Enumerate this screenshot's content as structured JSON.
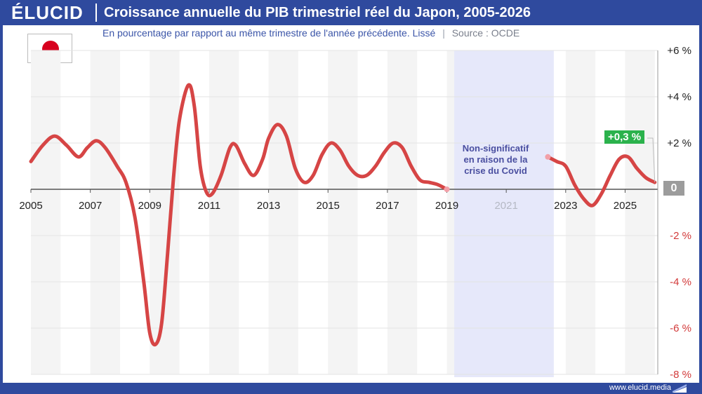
{
  "header": {
    "logo": "ÉLUCID",
    "title": "Croissance annuelle du PIB trimestriel réel du Japon, 2005-2026",
    "subtitle": "En pourcentage par rapport au même trimestre de l'année précédente. Lissé",
    "separator": "|",
    "source": "Source : OCDE"
  },
  "flag": {
    "icon": "japan-flag-icon",
    "disc_color": "#d7001e"
  },
  "footer": {
    "url": "www.elucid.media"
  },
  "colors": {
    "brand": "#2f4a9e",
    "line": "#d64545",
    "line_faded": "#f2a0a8",
    "covid_band": "#e6e8fa",
    "badge_green": "#2bb24c",
    "badge_gray": "#9c9c9c"
  },
  "chart_data": {
    "type": "line",
    "title": "Croissance annuelle du PIB trimestriel réel du Japon, 2005-2026",
    "xlabel": "",
    "ylabel": "",
    "xlim": [
      2005.0,
      2026.1
    ],
    "ylim": [
      -8,
      6
    ],
    "x_ticks": [
      "2005",
      "2007",
      "2009",
      "2011",
      "2013",
      "2015",
      "2017",
      "2019",
      "2021",
      "2023",
      "2025"
    ],
    "y_ticks": [
      "+6 %",
      "+4 %",
      "+2 %",
      "0",
      "-2 %",
      "-4 %",
      "-6 %",
      "-8 %"
    ],
    "grid": "horizontal",
    "alternating_year_bands": true,
    "series": [
      {
        "name": "",
        "values_segment_1": [
          [
            2005.0,
            1.2
          ],
          [
            2005.4,
            1.9
          ],
          [
            2005.8,
            2.3
          ],
          [
            2006.2,
            1.9
          ],
          [
            2006.6,
            1.4
          ],
          [
            2006.9,
            1.8
          ],
          [
            2007.2,
            2.1
          ],
          [
            2007.5,
            1.8
          ],
          [
            2007.9,
            1.0
          ],
          [
            2008.2,
            0.3
          ],
          [
            2008.5,
            -1.2
          ],
          [
            2008.8,
            -4.0
          ],
          [
            2009.0,
            -6.2
          ],
          [
            2009.2,
            -6.7
          ],
          [
            2009.4,
            -5.8
          ],
          [
            2009.6,
            -2.8
          ],
          [
            2009.8,
            0.5
          ],
          [
            2010.0,
            3.0
          ],
          [
            2010.3,
            4.5
          ],
          [
            2010.5,
            3.6
          ],
          [
            2010.7,
            1.0
          ],
          [
            2010.9,
            -0.1
          ],
          [
            2011.1,
            -0.2
          ],
          [
            2011.4,
            0.6
          ],
          [
            2011.7,
            1.8
          ],
          [
            2011.9,
            1.9
          ],
          [
            2012.2,
            1.1
          ],
          [
            2012.5,
            0.6
          ],
          [
            2012.8,
            1.3
          ],
          [
            2013.0,
            2.2
          ],
          [
            2013.3,
            2.8
          ],
          [
            2013.6,
            2.3
          ],
          [
            2013.9,
            0.9
          ],
          [
            2014.2,
            0.3
          ],
          [
            2014.5,
            0.6
          ],
          [
            2014.8,
            1.5
          ],
          [
            2015.1,
            2.0
          ],
          [
            2015.4,
            1.7
          ],
          [
            2015.7,
            1.0
          ],
          [
            2016.0,
            0.6
          ],
          [
            2016.3,
            0.6
          ],
          [
            2016.6,
            1.0
          ],
          [
            2016.9,
            1.6
          ],
          [
            2017.2,
            2.0
          ],
          [
            2017.5,
            1.8
          ],
          [
            2017.8,
            1.0
          ],
          [
            2018.1,
            0.4
          ],
          [
            2018.4,
            0.3
          ],
          [
            2018.7,
            0.2
          ],
          [
            2019.0,
            0.0
          ]
        ],
        "values_segment_2": [
          [
            2022.4,
            1.4
          ],
          [
            2022.7,
            1.2
          ],
          [
            2023.0,
            1.0
          ],
          [
            2023.3,
            0.2
          ],
          [
            2023.6,
            -0.4
          ],
          [
            2023.9,
            -0.7
          ],
          [
            2024.2,
            -0.2
          ],
          [
            2024.5,
            0.6
          ],
          [
            2024.8,
            1.3
          ],
          [
            2025.1,
            1.4
          ],
          [
            2025.4,
            0.9
          ],
          [
            2025.7,
            0.5
          ],
          [
            2026.0,
            0.3
          ]
        ]
      }
    ],
    "covid_band": {
      "from": 2019.25,
      "to": 2022.6
    },
    "annotations": {
      "covid_note": "Non-significatif en raison de la crise du Covid",
      "last_value_label": "+0,3 %",
      "zero_label": "0"
    }
  }
}
